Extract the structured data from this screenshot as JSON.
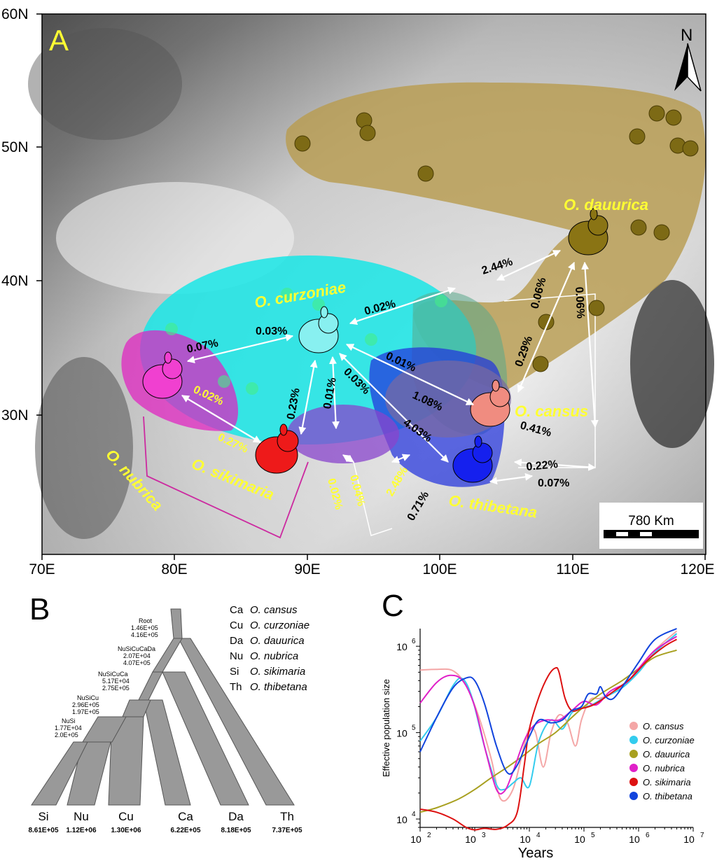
{
  "panelA": {
    "label": "A",
    "north": "N",
    "scale_label": "780 Km",
    "lat_labels": [
      "60N",
      "50N",
      "40N",
      "30N"
    ],
    "lon_labels": [
      "70E",
      "80E",
      "90E",
      "100E",
      "110E",
      "120E"
    ],
    "species_labels": {
      "dauurica": "O. dauurica",
      "curzoniae": "O. curzoniae",
      "cansus": "O. cansus",
      "nubrica": "O. nubrica",
      "sikimaria": "O. sikimaria",
      "thibetana": "O. thibetana"
    },
    "migration": {
      "m1": "2.44%",
      "m2": "0.02%",
      "m3": "0.03%",
      "m4": "0.07%",
      "m5": "0.02%",
      "m6": "0.23%",
      "m7": "0.01%",
      "m8": "0.03%",
      "m9": "0.01%",
      "m10": "1.08%",
      "m11": "4.03%",
      "m12": "0.06%",
      "m13": "0.29%",
      "m14": "0.06%",
      "m15": "0.41%",
      "m16": "0.22%",
      "m17": "0.07%",
      "m18": "0.27%",
      "m19": "0.02%",
      "m20": "0.04%",
      "m21": "2.48%",
      "m22": "0.71%"
    },
    "colors": {
      "dauurica": "#b89c50",
      "curzoniae": "#19e6e6",
      "cansus": "#e8887a",
      "nubrica": "#e020c0",
      "sikimaria": "#e01818",
      "thibetana": "#2020e0"
    }
  },
  "panelB": {
    "label": "B",
    "nodes": {
      "root": {
        "name": "Root",
        "t1": "1.46E+05",
        "t2": "4.16E+05"
      },
      "n5": {
        "name": "NuSiCuCaDa",
        "t1": "2.07E+04",
        "t2": "4.07E+05"
      },
      "n4": {
        "name": "NuSiCuCa",
        "t1": "5.17E+04",
        "t2": "2.75E+05"
      },
      "n3": {
        "name": "NuSiCu",
        "t1": "2.96E+05",
        "t2": "1.97E+05"
      },
      "n2": {
        "name": "NuSi",
        "t1": "1.77E+04",
        "t2": "2.0E+05"
      }
    },
    "tips": [
      {
        "code": "Si",
        "value": "8.61E+05"
      },
      {
        "code": "Nu",
        "value": "1.12E+06"
      },
      {
        "code": "Cu",
        "value": "1.30E+06"
      },
      {
        "code": "Ca",
        "value": "6.22E+05"
      },
      {
        "code": "Da",
        "value": "8.18E+05"
      },
      {
        "code": "Th",
        "value": "7.37E+05"
      }
    ],
    "legend": [
      {
        "code": "Ca",
        "name": "O. cansus"
      },
      {
        "code": "Cu",
        "name": "O. curzoniae"
      },
      {
        "code": "Da",
        "name": "O. dauurica"
      },
      {
        "code": "Nu",
        "name": "O. nubrica"
      },
      {
        "code": "Si",
        "name": "O. sikimaria"
      },
      {
        "code": "Th",
        "name": "O. thibetana"
      }
    ]
  },
  "chart_data": {
    "type": "line",
    "panel_label": "C",
    "xlabel": "Years",
    "ylabel": "Effective population size",
    "x_scale": "log",
    "y_scale": "log",
    "xlim": [
      100,
      10000000
    ],
    "ylim": [
      8000,
      1600000
    ],
    "x_ticks": [
      {
        "base": "10",
        "exp": "2"
      },
      {
        "base": "10",
        "exp": "3"
      },
      {
        "base": "10",
        "exp": "4"
      },
      {
        "base": "10",
        "exp": "5"
      },
      {
        "base": "10",
        "exp": "6"
      },
      {
        "base": "10",
        "exp": "7"
      }
    ],
    "y_ticks": [
      {
        "base": "10",
        "exp": "4"
      },
      {
        "base": "10",
        "exp": "5"
      },
      {
        "base": "10",
        "exp": "6"
      }
    ],
    "legend_position": "bottom-right",
    "series": [
      {
        "name": "O. cansus",
        "color": "#f4a6a6",
        "x": [
          100,
          200,
          400,
          700,
          1200,
          2000,
          3000,
          5000,
          8000,
          10000,
          13000,
          18000,
          25000,
          35000,
          50000,
          70000,
          90000,
          130000,
          200000,
          400000,
          1000000,
          2000000,
          5000000
        ],
        "y": [
          530000,
          540000,
          520000,
          350000,
          150000,
          50000,
          17000,
          22000,
          70000,
          110000,
          100000,
          40000,
          100000,
          160000,
          130000,
          70000,
          140000,
          240000,
          250000,
          310000,
          500000,
          900000,
          1500000
        ]
      },
      {
        "name": "O. curzoniae",
        "color": "#33ccee",
        "x": [
          100,
          200,
          400,
          600,
          900,
          1500,
          2500,
          3500,
          5000,
          7000,
          10000,
          15000,
          25000,
          40000,
          60000,
          90000,
          140000,
          250000,
          500000,
          1000000,
          2000000,
          5000000
        ],
        "y": [
          80000,
          150000,
          350000,
          420000,
          250000,
          70000,
          25000,
          22000,
          26000,
          30000,
          24000,
          80000,
          140000,
          110000,
          170000,
          190000,
          210000,
          260000,
          330000,
          500000,
          850000,
          1400000
        ]
      },
      {
        "name": "O. dauurica",
        "color": "#a8a020",
        "x": [
          100,
          200,
          500,
          1000,
          2000,
          4000,
          8000,
          15000,
          30000,
          60000,
          100000,
          200000,
          500000,
          1000000,
          2000000,
          5000000
        ],
        "y": [
          12000,
          13500,
          17000,
          22000,
          30000,
          40000,
          55000,
          75000,
          100000,
          150000,
          200000,
          280000,
          400000,
          550000,
          750000,
          900000
        ]
      },
      {
        "name": "O. nubrica",
        "color": "#e020c8",
        "x": [
          100,
          200,
          350,
          600,
          1000,
          1600,
          2500,
          3500,
          5000,
          8000,
          12000,
          20000,
          35000,
          60000,
          100000,
          170000,
          300000,
          600000,
          1000000,
          2000000,
          5000000
        ],
        "y": [
          220000,
          380000,
          460000,
          400000,
          200000,
          60000,
          22000,
          21000,
          35000,
          80000,
          120000,
          140000,
          140000,
          180000,
          230000,
          210000,
          300000,
          380000,
          550000,
          900000,
          1300000
        ]
      },
      {
        "name": "O. sikimaria",
        "color": "#dd1111",
        "x": [
          100,
          200,
          400,
          700,
          1000,
          1500,
          2500,
          4000,
          6000,
          8000,
          10000,
          15000,
          22000,
          30000,
          35000,
          45000,
          60000,
          90000,
          150000,
          300000,
          700000,
          1500000,
          3000000,
          5000000
        ],
        "y": [
          13000,
          12000,
          10000,
          8000,
          7500,
          7800,
          7600,
          8500,
          12000,
          40000,
          110000,
          260000,
          450000,
          560000,
          500000,
          250000,
          180000,
          190000,
          210000,
          280000,
          420000,
          700000,
          1000000,
          1200000
        ]
      },
      {
        "name": "O. thibetana",
        "color": "#1144dd",
        "x": [
          100,
          200,
          400,
          700,
          1000,
          1500,
          2500,
          4000,
          6000,
          10000,
          15000,
          25000,
          40000,
          60000,
          90000,
          120000,
          170000,
          200000,
          250000,
          350000,
          600000,
          1000000,
          2000000,
          5000000
        ],
        "y": [
          60000,
          150000,
          330000,
          430000,
          400000,
          220000,
          70000,
          34000,
          42000,
          90000,
          140000,
          130000,
          140000,
          180000,
          200000,
          280000,
          280000,
          340000,
          260000,
          250000,
          400000,
          650000,
          1200000,
          1600000
        ]
      }
    ]
  }
}
